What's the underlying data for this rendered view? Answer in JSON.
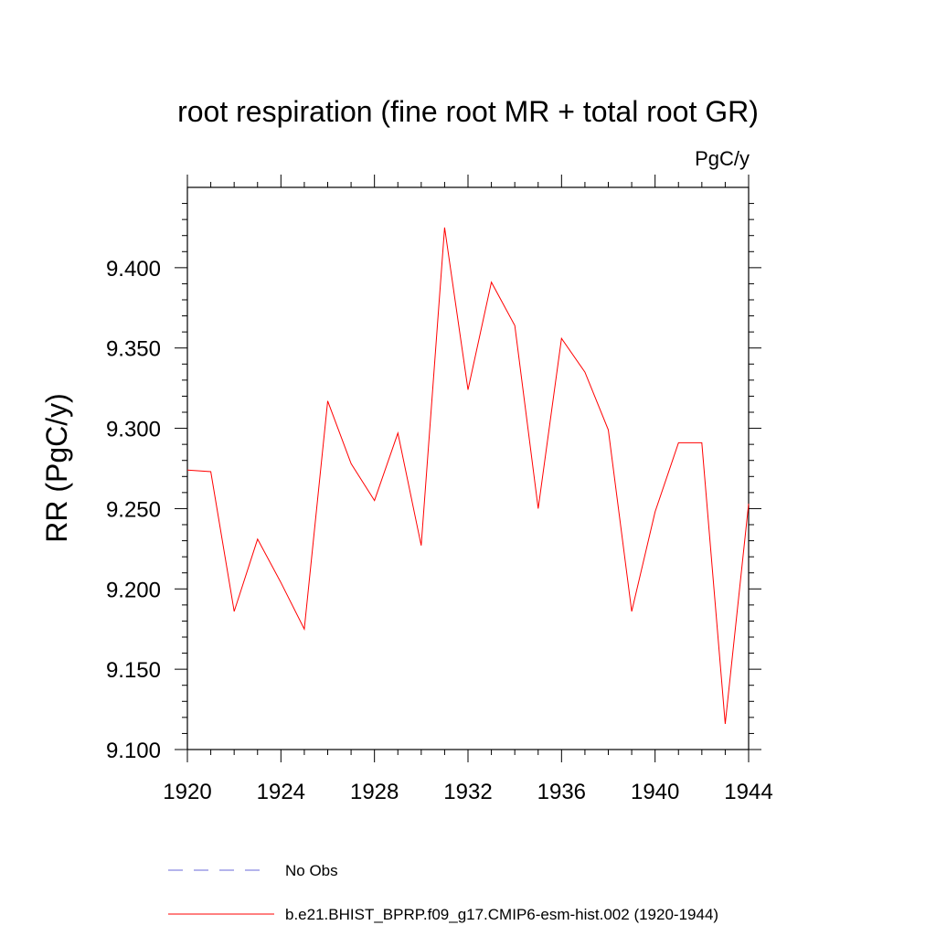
{
  "chart_data": {
    "type": "line",
    "title": "root respiration (fine root MR + total root GR)",
    "units": "PgC/y",
    "ylabel": "RR  (PgC/y)",
    "xlabel": "",
    "xlim": [
      1920,
      1944
    ],
    "ylim": [
      9.1,
      9.45
    ],
    "x_ticks": [
      1920,
      1924,
      1928,
      1932,
      1936,
      1940,
      1944
    ],
    "y_ticks": [
      9.1,
      9.15,
      9.2,
      9.25,
      9.3,
      9.35,
      9.4
    ],
    "x_tick_labels": [
      "1920",
      "1924",
      "1928",
      "1932",
      "1936",
      "1940",
      "1944"
    ],
    "y_tick_labels": [
      "9.100",
      "9.150",
      "9.200",
      "9.250",
      "9.300",
      "9.350",
      "9.400"
    ],
    "grid": false,
    "legend_position": "bottom",
    "series": [
      {
        "name": "b.e21.BHIST_BPRP.f09_g17.CMIP6-esm-hist.002 (1920-1944)",
        "color": "#ff0000",
        "style": "solid",
        "x": [
          1920,
          1921,
          1922,
          1923,
          1924,
          1925,
          1926,
          1927,
          1928,
          1929,
          1930,
          1931,
          1932,
          1933,
          1934,
          1935,
          1936,
          1937,
          1938,
          1939,
          1940,
          1941,
          1942,
          1943,
          1944
        ],
        "values": [
          9.274,
          9.273,
          9.186,
          9.231,
          9.204,
          9.175,
          9.317,
          9.278,
          9.255,
          9.297,
          9.227,
          9.425,
          9.324,
          9.391,
          9.364,
          9.25,
          9.356,
          9.335,
          9.299,
          9.186,
          9.248,
          9.291,
          9.291,
          9.116,
          9.253
        ]
      }
    ],
    "legend": [
      {
        "label": "No Obs",
        "color": "#6a6ad8",
        "style": "dashed"
      },
      {
        "label": "b.e21.BHIST_BPRP.f09_g17.CMIP6-esm-hist.002 (1920-1944)",
        "color": "#ff0000",
        "style": "solid"
      }
    ]
  }
}
